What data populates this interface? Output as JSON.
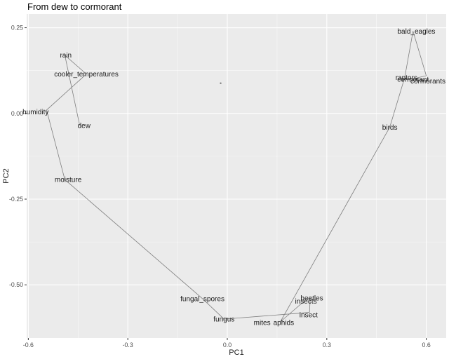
{
  "chart_data": {
    "type": "line",
    "title": "From dew to cormorant",
    "xlabel": "PC1",
    "ylabel": "PC2",
    "xlim": [
      -0.605,
      0.66
    ],
    "ylim": [
      -0.655,
      0.29
    ],
    "x_ticks": [
      -0.6,
      -0.3,
      0.0,
      0.3,
      0.6
    ],
    "x_tick_labels": [
      "-0.6",
      "-0.3",
      "0.0",
      "0.3",
      "0.6"
    ],
    "y_ticks": [
      -0.5,
      -0.25,
      0.0,
      0.25
    ],
    "y_tick_labels": [
      "-0.50",
      "-0.25",
      "0.00",
      "0.25"
    ],
    "grid": true,
    "colors": {
      "panel": "#ebebeb",
      "grid": "#ffffff",
      "line": "#7f7f7f",
      "text": "#1a1a1a"
    },
    "path": [
      {
        "label": "dew",
        "x": -0.445,
        "y": -0.035
      },
      {
        "label": "rain",
        "x": -0.49,
        "y": 0.17
      },
      {
        "label": "cooler_temperatures",
        "x": -0.425,
        "y": 0.115
      },
      {
        "label": "humidity",
        "x": -0.545,
        "y": 0.01
      },
      {
        "label": "moisture",
        "x": -0.49,
        "y": -0.193
      },
      {
        "label": "fungal_spores",
        "x": -0.075,
        "y": -0.54
      },
      {
        "label": "fungus",
        "x": -0.01,
        "y": -0.6
      },
      {
        "label": "mites",
        "x": 0.215,
        "y": -0.583
      },
      {
        "label": "insect",
        "x": 0.248,
        "y": -0.58
      },
      {
        "label": "beetles",
        "x": 0.25,
        "y": -0.538
      },
      {
        "label": "insects",
        "x": 0.235,
        "y": -0.545
      },
      {
        "label": "aphids",
        "x": 0.16,
        "y": -0.608
      },
      {
        "label": "birds",
        "x": 0.49,
        "y": -0.04
      },
      {
        "label": "raptors",
        "x": 0.535,
        "y": 0.105
      },
      {
        "label": "bald_eagles",
        "x": 0.56,
        "y": 0.24
      },
      {
        "label": "cormorants",
        "x": 0.6,
        "y": 0.11
      },
      {
        "label": "cormorant",
        "x": 0.555,
        "y": 0.1
      }
    ],
    "label_positions": [
      {
        "label": "dew",
        "x": -0.432,
        "y": -0.035
      },
      {
        "label": "rain",
        "x": -0.487,
        "y": 0.17
      },
      {
        "label": "cooler_temperatures",
        "x": -0.425,
        "y": 0.115
      },
      {
        "label": "humidity",
        "x": -0.578,
        "y": 0.005
      },
      {
        "label": "moisture",
        "x": -0.48,
        "y": -0.193
      },
      {
        "label": "fungal_spores",
        "x": -0.075,
        "y": -0.54
      },
      {
        "label": "fungus",
        "x": -0.01,
        "y": -0.6
      },
      {
        "label": "mites",
        "x": 0.105,
        "y": -0.61
      },
      {
        "label": "insect",
        "x": 0.245,
        "y": -0.588
      },
      {
        "label": "beetles",
        "x": 0.255,
        "y": -0.538
      },
      {
        "label": "insects",
        "x": 0.237,
        "y": -0.548
      },
      {
        "label": "aphids",
        "x": 0.17,
        "y": -0.61
      },
      {
        "label": "birds",
        "x": 0.49,
        "y": -0.04
      },
      {
        "label": "raptors",
        "x": 0.54,
        "y": 0.105
      },
      {
        "label": "bald_eagles",
        "x": 0.57,
        "y": 0.24
      },
      {
        "label": "cormorants",
        "x": 0.605,
        "y": 0.095
      },
      {
        "label": "cormorant",
        "x": 0.56,
        "y": 0.1
      }
    ],
    "isolated_points": [
      {
        "x": -0.02,
        "y": 0.088
      }
    ]
  }
}
